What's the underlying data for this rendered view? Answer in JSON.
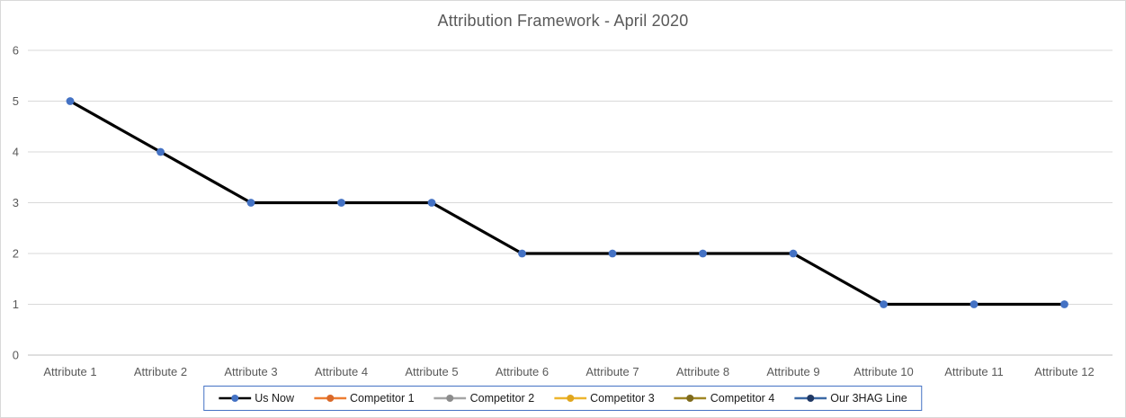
{
  "chart_data": {
    "type": "line",
    "title": "Attribution Framework - April 2020",
    "categories": [
      "Attribute 1",
      "Attribute 2",
      "Attribute 3",
      "Attribute 4",
      "Attribute 5",
      "Attribute 6",
      "Attribute 7",
      "Attribute 8",
      "Attribute 9",
      "Attribute 10",
      "Attribute 11",
      "Attribute 12"
    ],
    "y_ticks": [
      0,
      1,
      2,
      3,
      4,
      5,
      6
    ],
    "ylim": [
      0,
      6
    ],
    "grid": true,
    "legend_position": "bottom",
    "series": [
      {
        "name": "Us Now",
        "line_color": "#000000",
        "marker_color": "#4472C4",
        "values": [
          5,
          4,
          3,
          3,
          3,
          2,
          2,
          2,
          2,
          1,
          1,
          1
        ]
      },
      {
        "name": "Competitor 1",
        "line_color": "#ED7D31",
        "marker_color": "#D9692A",
        "values": []
      },
      {
        "name": "Competitor 2",
        "line_color": "#A5A5A5",
        "marker_color": "#8C8C8C",
        "values": []
      },
      {
        "name": "Competitor 3",
        "line_color": "#EDB52E",
        "marker_color": "#E0A61E",
        "values": []
      },
      {
        "name": "Competitor 4",
        "line_color": "#A08623",
        "marker_color": "#7F6B1D",
        "values": []
      },
      {
        "name": "Our 3HAG Line",
        "line_color": "#3B69A5",
        "marker_color": "#203864",
        "values": []
      }
    ]
  },
  "colors": {
    "background": "#FFFFFF",
    "frame_border": "#D9D9D9",
    "title_text": "#595959",
    "tick_text": "#595959",
    "gridline": "#D9D9D9",
    "axis_line": "#BFBFBF",
    "legend_border": "#4472C4",
    "legend_text": "#1A1A1A"
  }
}
